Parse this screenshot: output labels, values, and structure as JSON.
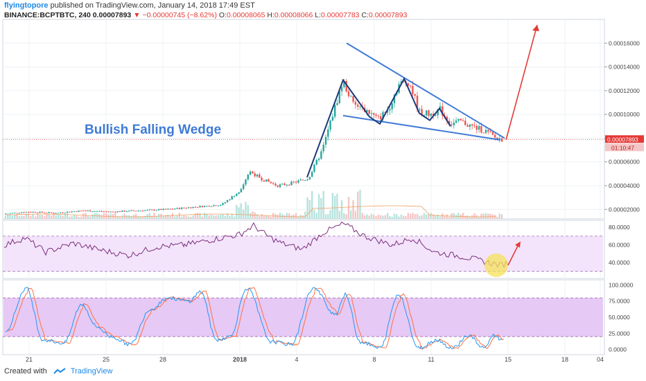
{
  "header": {
    "author": "flyingtopore",
    "published": "published on TradingView.com, January 14, 2018 17:49 EST",
    "symbol": "BINANCE:BCPTBTC, 240",
    "last": "0.00007893",
    "change": "−0.00000745 (−8.62%)",
    "o_label": "O:",
    "o": "0.00008065",
    "h_label": "H:",
    "h": "0.00008066",
    "l_label": "L:",
    "l": "0.00007783",
    "c_label": "C:",
    "c": "0.00007893"
  },
  "annotation": {
    "text": "Bullish Falling Wedge"
  },
  "price_tag": {
    "value": "0.00007893",
    "countdown": "01:10:47"
  },
  "footer": {
    "created": "Created with",
    "brand": "TradingView"
  },
  "colors": {
    "up": "#26a69a",
    "down": "#ef5350",
    "wedge": "#3f7bd6",
    "pole": "#1a3a7a",
    "rsi": "#7b2d7b",
    "k": "#2196f3",
    "d": "#ff7043",
    "arrow": "#e53935",
    "band_rsi": "#f3e4fb",
    "band_stoch": "#e6c9f5"
  },
  "chart_data": {
    "type": "candlestick",
    "x_tick_labels": [
      "21",
      "25",
      "28",
      "2018",
      "4",
      "8",
      "11",
      "15",
      "18",
      "04"
    ],
    "price_axis": {
      "ticks": [
        2e-05,
        4e-05,
        6e-05,
        8e-05,
        0.0001,
        0.00012,
        0.00014,
        0.00016
      ],
      "tick_labels": [
        "0.00002000",
        "0.00004000",
        "0.00006000",
        "0.00010000",
        "0.00012000",
        "0.00014000",
        "0.00016000"
      ],
      "last": 7.893e-05
    },
    "price_path": [
      [
        0,
        1.6e-05
      ],
      [
        40,
        1.8e-05
      ],
      [
        80,
        1.7e-05
      ],
      [
        120,
        1.9e-05
      ],
      [
        160,
        1.8e-05
      ],
      [
        200,
        1.9e-05
      ],
      [
        240,
        2e-05
      ],
      [
        280,
        2.2e-05
      ],
      [
        320,
        2.4e-05
      ],
      [
        345,
        3.5e-05
      ],
      [
        360,
        5.2e-05
      ],
      [
        380,
        4.5e-05
      ],
      [
        400,
        4e-05
      ],
      [
        420,
        4.2e-05
      ],
      [
        445,
        4.6e-05
      ],
      [
        465,
        7e-05
      ],
      [
        480,
        0.0001
      ],
      [
        495,
        0.000128
      ],
      [
        510,
        0.000108
      ],
      [
        530,
        0.000103
      ],
      [
        545,
        9.6e-05
      ],
      [
        560,
        0.000104
      ],
      [
        575,
        0.000125
      ],
      [
        590,
        0.000128
      ],
      [
        605,
        0.000102
      ],
      [
        620,
        0.0001
      ],
      [
        635,
        0.000104
      ],
      [
        650,
        9.2e-05
      ],
      [
        665,
        9.4e-05
      ],
      [
        680,
        9e-05
      ],
      [
        700,
        8.6e-05
      ],
      [
        715,
        8e-05
      ],
      [
        728,
        7.89e-05
      ]
    ],
    "wedge": {
      "upper": [
        [
          500,
          0.00016
        ],
        [
          728,
          8e-05
        ]
      ],
      "lower": [
        [
          495,
          9.9e-05
        ],
        [
          722,
          7.85e-05
        ]
      ]
    },
    "rsi": {
      "axis_ticks": [
        40,
        60,
        80
      ],
      "tick_labels": [
        "40.0000",
        "60.0000",
        "80.0000"
      ],
      "bands": [
        30,
        70
      ],
      "values": [
        [
          0,
          60
        ],
        [
          30,
          68
        ],
        [
          60,
          52
        ],
        [
          100,
          62
        ],
        [
          140,
          54
        ],
        [
          180,
          48
        ],
        [
          220,
          58
        ],
        [
          260,
          60
        ],
        [
          300,
          66
        ],
        [
          340,
          72
        ],
        [
          360,
          82
        ],
        [
          380,
          70
        ],
        [
          400,
          62
        ],
        [
          430,
          55
        ],
        [
          460,
          74
        ],
        [
          490,
          84
        ],
        [
          520,
          70
        ],
        [
          560,
          60
        ],
        [
          590,
          68
        ],
        [
          620,
          52
        ],
        [
          660,
          47
        ],
        [
          700,
          40
        ],
        [
          715,
          37
        ],
        [
          728,
          40
        ]
      ]
    },
    "stochastic": {
      "axis_ticks": [
        0,
        25,
        50,
        75,
        100
      ],
      "tick_labels": [
        "0.0000",
        "25.0000",
        "50.0000",
        "75.0000",
        "100.0000"
      ],
      "bands": [
        20,
        80
      ]
    }
  }
}
